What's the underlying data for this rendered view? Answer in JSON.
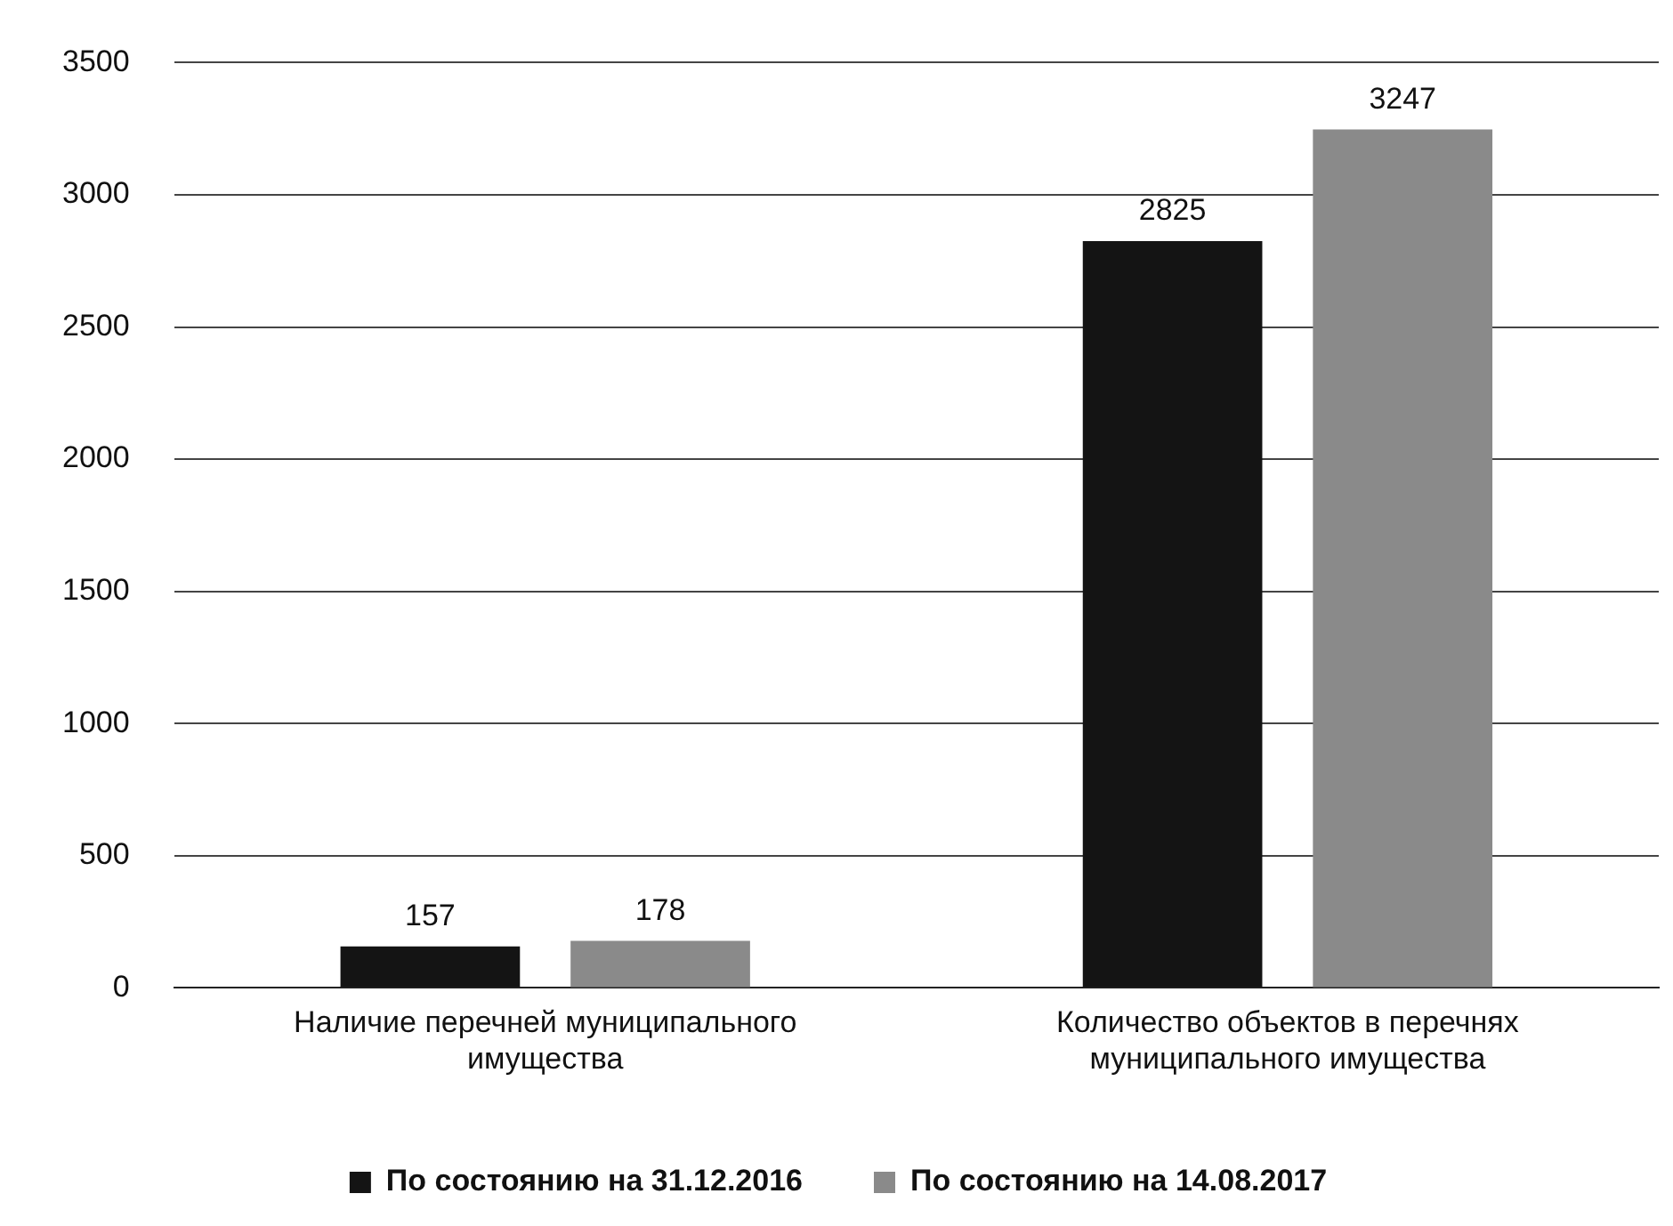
{
  "chart_data": {
    "type": "bar",
    "categories": [
      "Наличие перечней муниципального имущества",
      "Количество объектов в перечнях муниципального имущества"
    ],
    "series": [
      {
        "name": "По состоянию на 31.12.2016",
        "color": "#141414",
        "values": [
          157,
          2825
        ]
      },
      {
        "name": "По состоянию на 14.08.2017",
        "color": "#8a8a8a",
        "values": [
          178,
          3247
        ]
      }
    ],
    "ylim": [
      0,
      3500
    ],
    "yticks": [
      0,
      500,
      1000,
      1500,
      2000,
      2500,
      3000,
      3500
    ],
    "grid": "y",
    "legend": "bottom",
    "data_labels": true
  }
}
